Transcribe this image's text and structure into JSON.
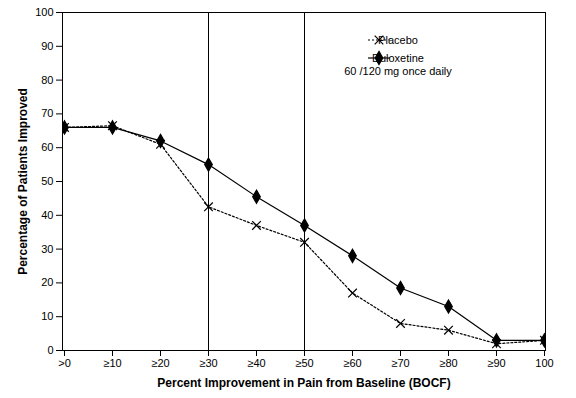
{
  "chart_data": {
    "type": "line",
    "x_label": "Percent Improvement in Pain from Baseline (BOCF)",
    "y_label": "Percentage of Patients Improved",
    "categories": [
      ">0",
      "≥10",
      "≥20",
      "≥30",
      "≥40",
      "≥50",
      "≥60",
      "≥70",
      "≥80",
      "≥90",
      "100"
    ],
    "series": [
      {
        "name": "Placebo",
        "color": "#000000",
        "marker": "x",
        "line_style": "dotted",
        "values": [
          66,
          66.5,
          61,
          42.5,
          37,
          32,
          17,
          8,
          6,
          2,
          3
        ]
      },
      {
        "name": "Duloxetine 60 /120 mg once daily",
        "color": "#000000",
        "marker": "diamond",
        "line_style": "solid",
        "values": [
          66,
          66,
          62,
          55,
          45.5,
          37,
          28,
          18.5,
          13,
          3,
          3
        ]
      }
    ],
    "vlines": [
      "≥30",
      "≥50"
    ],
    "ylim": [
      0,
      100
    ],
    "yticks": [
      0,
      10,
      20,
      30,
      40,
      50,
      60,
      70,
      80,
      90,
      100
    ],
    "grid": false,
    "legend": "top-right"
  }
}
